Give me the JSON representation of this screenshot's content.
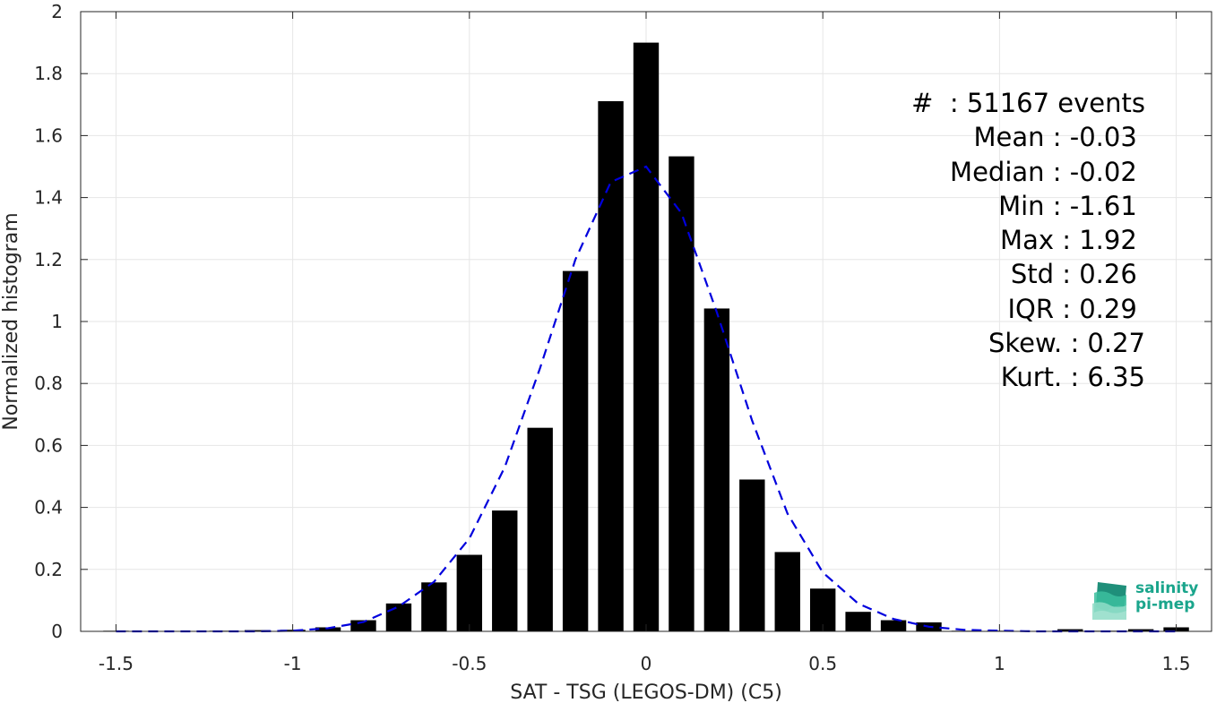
{
  "chart_data": {
    "type": "bar",
    "xlabel": "SAT - TSG (LEGOS-DM) (C5)",
    "ylabel": "Normalized histogram",
    "xlim": [
      -1.6,
      1.6
    ],
    "ylim": [
      0,
      2
    ],
    "xticks": [
      "-1.5",
      "-1",
      "-0.5",
      "0",
      "0.5",
      "1",
      "1.5"
    ],
    "yticks": [
      "0",
      "0.2",
      "0.4",
      "0.6",
      "0.8",
      "1",
      "1.2",
      "1.4",
      "1.6",
      "1.8",
      "2"
    ],
    "grid": true,
    "bar_color": "#000000",
    "bins": [
      -1.5,
      -1.4,
      -1.3,
      -1.2,
      -1.1,
      -1.0,
      -0.9,
      -0.8,
      -0.7,
      -0.6,
      -0.5,
      -0.4,
      -0.3,
      -0.2,
      -0.1,
      0.0,
      0.1,
      0.2,
      0.3,
      0.4,
      0.5,
      0.6,
      0.7,
      0.8,
      0.9,
      1.0,
      1.1,
      1.2,
      1.3,
      1.4,
      1.5
    ],
    "values": [
      0.002,
      0.001,
      0.001,
      0.002,
      0.004,
      0.005,
      0.013,
      0.036,
      0.09,
      0.158,
      0.247,
      0.39,
      0.657,
      1.163,
      1.711,
      1.9,
      1.533,
      1.042,
      0.49,
      0.256,
      0.138,
      0.063,
      0.036,
      0.029,
      0.002,
      0.002,
      0.001,
      0.007,
      0.002,
      0.007,
      0.013
    ],
    "fit": {
      "style": "dashed",
      "color": "#0000dd",
      "x": [
        -1.5,
        -1.4,
        -1.3,
        -1.2,
        -1.1,
        -1.0,
        -0.9,
        -0.8,
        -0.7,
        -0.6,
        -0.5,
        -0.4,
        -0.3,
        -0.2,
        -0.1,
        0.0,
        0.1,
        0.2,
        0.3,
        0.4,
        0.5,
        0.6,
        0.7,
        0.8,
        0.9,
        1.0,
        1.1,
        1.2,
        1.3,
        1.4,
        1.5
      ],
      "y": [
        0.0,
        0.0,
        0.0,
        0.0,
        0.0,
        0.002,
        0.01,
        0.03,
        0.08,
        0.16,
        0.3,
        0.53,
        0.85,
        1.2,
        1.45,
        1.5,
        1.35,
        1.03,
        0.68,
        0.38,
        0.19,
        0.09,
        0.04,
        0.015,
        0.005,
        0.002,
        0.0,
        0.0,
        0.0,
        0.0,
        0.0
      ]
    }
  },
  "stats": [
    "#  : 51167 events",
    "Mean : -0.03 ",
    "Median : -0.02 ",
    "Min : -1.61 ",
    "Max : 1.92 ",
    "Std : 0.26 ",
    "IQR : 0.29 ",
    "Skew. : 0.27",
    "Kurt. : 6.35"
  ],
  "logo": {
    "line1": "salinity",
    "line2": "pi-mep",
    "color": "#1aa58c"
  }
}
